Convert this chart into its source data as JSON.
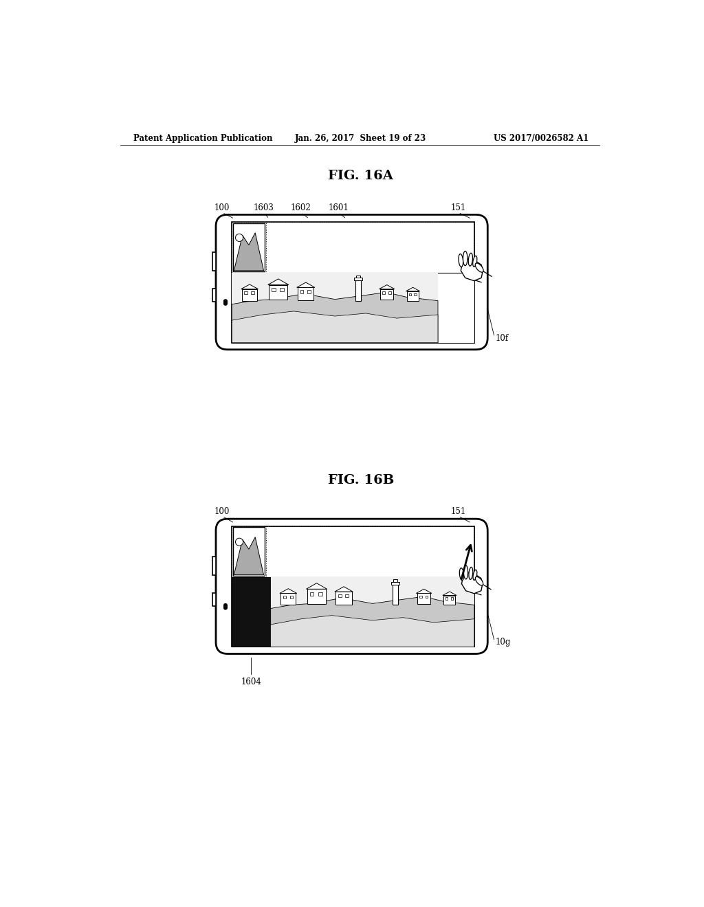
{
  "bg_color": "#ffffff",
  "header_left": "Patent Application Publication",
  "header_mid": "Jan. 26, 2017  Sheet 19 of 23",
  "header_right": "US 2017/0026582 A1",
  "fig16a_title": "FIG. 16A",
  "fig16b_title": "FIG. 16B",
  "fig16a_labels": [
    "100",
    "1603",
    "1602",
    "1601",
    "151"
  ],
  "fig16a_device_label": "10f",
  "fig16b_labels": [
    "100",
    "151"
  ],
  "fig16b_device_label": "10g",
  "fig16b_bottom_label": "1604",
  "font_size_header": 8.5,
  "font_size_title": 14,
  "font_size_label": 8.5
}
